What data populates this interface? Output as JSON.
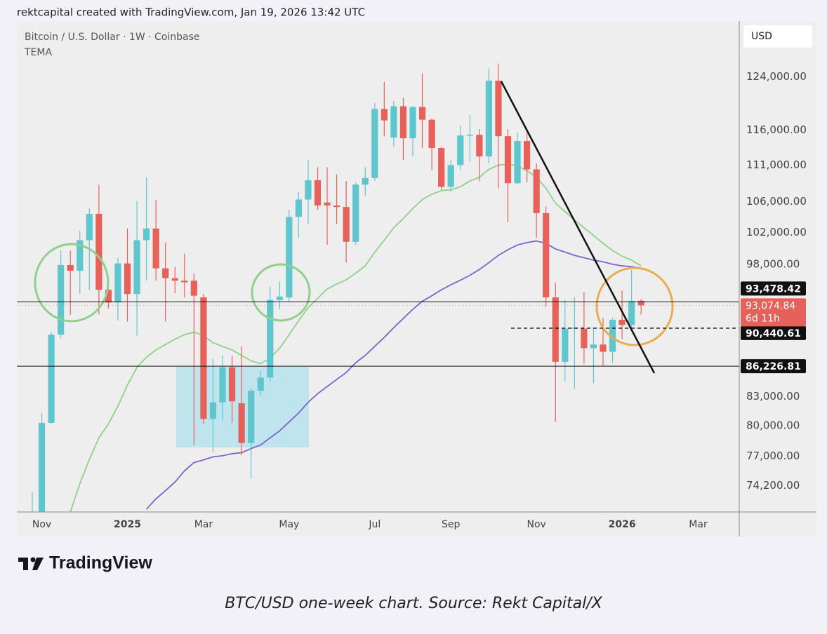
{
  "header": {
    "credit": "rektcapital created with TradingView.com, Jan 19, 2026 13:42 UTC"
  },
  "chart_data": {
    "type": "candlestick",
    "title": "Bitcoin / U.S. Dollar · 1W · Coinbase",
    "indicator": "TEMA",
    "currency": "USD",
    "categories": [
      null,
      "Nov",
      null,
      null,
      null,
      null,
      null,
      null,
      null,
      null,
      "2025",
      null,
      null,
      null,
      null,
      null,
      null,
      null,
      "Mar",
      null,
      null,
      null,
      null,
      null,
      null,
      null,
      null,
      "May",
      null,
      null,
      null,
      null,
      null,
      null,
      null,
      null,
      "Jul",
      null,
      null,
      null,
      null,
      null,
      null,
      null,
      "Sep",
      null,
      null,
      null,
      null,
      null,
      null,
      null,
      null,
      "Nov",
      null,
      null,
      null,
      null,
      null,
      null,
      null,
      null,
      "2026",
      null,
      null,
      null,
      null,
      null,
      null,
      null,
      "Mar"
    ],
    "open": [
      67900,
      68800,
      80300,
      89700,
      97900,
      97200,
      101000,
      104400,
      94900,
      93400,
      98100,
      94400,
      101000,
      102500,
      97500,
      96300,
      96000,
      96000,
      94000,
      80700,
      82400,
      86100,
      82300,
      78300,
      83600,
      85000,
      93700,
      94000,
      104000,
      106300,
      108900,
      105900,
      105500,
      105300,
      100800,
      108300,
      109200,
      119100,
      114900,
      119500,
      114800,
      119400,
      117500,
      113400,
      108000,
      111000,
      115200,
      115300,
      112200,
      123400,
      115100,
      108500,
      114400,
      110400,
      104500,
      94000,
      86700,
      90400,
      90400,
      88200,
      88600,
      87800,
      91400,
      90800,
      93600,
      null,
      null,
      null,
      null,
      null,
      null
    ],
    "high": [
      73600,
      81300,
      90000,
      99700,
      99700,
      102200,
      105100,
      108300,
      95800,
      98800,
      102500,
      106100,
      109300,
      106200,
      100700,
      97700,
      99300,
      96900,
      94400,
      87000,
      87400,
      87400,
      88400,
      83800,
      85700,
      95300,
      95900,
      104900,
      107300,
      111700,
      110700,
      110700,
      109700,
      108800,
      108600,
      110700,
      120000,
      123200,
      120300,
      120800,
      119500,
      124500,
      117700,
      113600,
      111700,
      116600,
      118200,
      116100,
      125300,
      126100,
      116100,
      115600,
      115600,
      111200,
      105400,
      95800,
      93700,
      94000,
      94600,
      90400,
      91600,
      91600,
      94800,
      97300,
      93800,
      null,
      null,
      null,
      null,
      null,
      null
    ],
    "low": [
      67400,
      66800,
      80200,
      89300,
      91950,
      94400,
      94900,
      92000,
      92700,
      91300,
      91200,
      89600,
      96000,
      96000,
      91200,
      94500,
      94000,
      78100,
      80200,
      77400,
      80600,
      80300,
      77100,
      74900,
      83100,
      84600,
      92600,
      93500,
      101300,
      103100,
      104900,
      100400,
      103100,
      98200,
      100400,
      106800,
      108800,
      115100,
      113600,
      111700,
      112200,
      113400,
      110300,
      107600,
      107300,
      110300,
      111500,
      108800,
      111200,
      107800,
      103300,
      108300,
      108600,
      101300,
      92900,
      80400,
      84600,
      83800,
      86500,
      84400,
      86200,
      86600,
      89200,
      90400,
      92000,
      null,
      null,
      null,
      null,
      null,
      null
    ],
    "close": [
      68800,
      80300,
      89700,
      97900,
      97200,
      101000,
      104400,
      94900,
      93400,
      98100,
      94400,
      101000,
      102500,
      97500,
      96300,
      96000,
      95800,
      94200,
      80700,
      82400,
      86100,
      82500,
      78300,
      83600,
      85000,
      93700,
      94100,
      104000,
      106300,
      108900,
      105500,
      105500,
      105300,
      100800,
      108300,
      109200,
      119100,
      117400,
      119500,
      114800,
      119400,
      117500,
      113400,
      108000,
      111000,
      115200,
      115300,
      112200,
      123400,
      115100,
      108500,
      114400,
      110400,
      104500,
      94000,
      86700,
      90400,
      90500,
      88200,
      88600,
      87800,
      91400,
      90800,
      93600,
      93074.84,
      null,
      null,
      null,
      null,
      null,
      null
    ],
    "up_color": "#5ec6cc",
    "down_color": "#e6615a",
    "series": [
      {
        "color": "#8fd08a",
        "values": [
          null,
          null,
          null,
          null,
          71800,
          74400,
          76700,
          78800,
          80200,
          82000,
          84200,
          86100,
          87200,
          88000,
          88600,
          89200,
          89700,
          90000,
          89600,
          88800,
          88400,
          88000,
          87400,
          86800,
          86500,
          87100,
          88200,
          89700,
          91300,
          92800,
          93900,
          95000,
          95600,
          96100,
          96900,
          97800,
          99500,
          101000,
          102600,
          103800,
          105100,
          106300,
          107000,
          107500,
          107600,
          108000,
          108800,
          109300,
          110400,
          111000,
          111100,
          110900,
          110200,
          109300,
          107800,
          105800,
          104700,
          103600,
          102600,
          101600,
          100600,
          99700,
          99000,
          98500,
          97800,
          null,
          null,
          null,
          null,
          null,
          null
        ]
      },
      {
        "color": "#7a66c9",
        "values": [
          null,
          null,
          null,
          null,
          null,
          null,
          null,
          null,
          null,
          null,
          null,
          null,
          72050,
          73000,
          73750,
          74550,
          75600,
          76400,
          76650,
          76950,
          77050,
          77250,
          77350,
          77750,
          78100,
          78800,
          79500,
          80400,
          81300,
          82400,
          83300,
          84050,
          84800,
          85550,
          86600,
          87400,
          88400,
          89400,
          90500,
          91550,
          92600,
          93550,
          94200,
          94900,
          95500,
          96050,
          96650,
          97350,
          98200,
          99100,
          99800,
          100400,
          100700,
          100900,
          100600,
          99900,
          99500,
          99100,
          98800,
          98500,
          98300,
          98000,
          97800,
          97700,
          97500,
          null,
          null,
          null,
          null,
          null,
          null
        ]
      }
    ],
    "log_scale": true,
    "ylim": [
      71800,
      133000
    ],
    "yticks": [
      {
        "value": 124000,
        "label": "124,000.00"
      },
      {
        "value": 116000,
        "label": "116,000.00"
      },
      {
        "value": 111000,
        "label": "111,000.00"
      },
      {
        "value": 106000,
        "label": "106,000.00"
      },
      {
        "value": 102000,
        "label": "102,000.00"
      },
      {
        "value": 98000,
        "label": "98,000.00"
      },
      {
        "value": 83000,
        "label": "83,000.00"
      },
      {
        "value": 80000,
        "label": "80,000.00"
      },
      {
        "value": 77000,
        "label": "77,000.00"
      },
      {
        "value": 74200,
        "label": "74,200.00"
      }
    ],
    "levels": [
      {
        "value": 93478.42,
        "label": "93,478.42",
        "style": "solid"
      },
      {
        "value": 90440.61,
        "label": "90,440.61",
        "style": "dashed"
      },
      {
        "value": 86226.81,
        "label": "86,226.81",
        "style": "solid"
      }
    ],
    "last_price": {
      "value": 93074.84,
      "label": "93,074.84",
      "countdown": "6d 11h"
    }
  },
  "footer": {
    "logo": "TradingView",
    "caption": "BTC/USD one-week chart. Source: Rekt Capital/X"
  }
}
